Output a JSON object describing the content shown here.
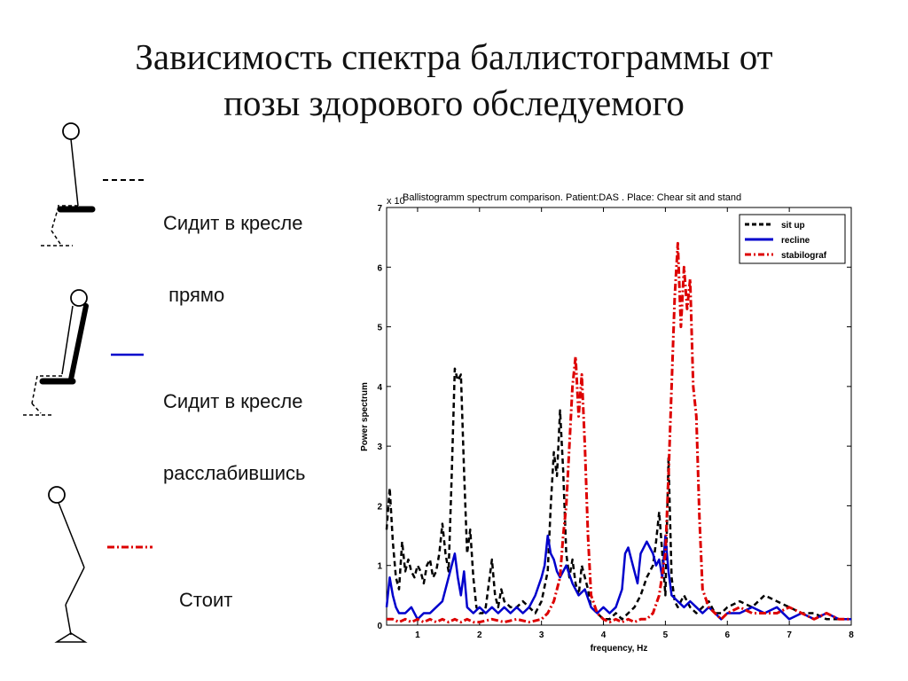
{
  "slide": {
    "title_line1": "Зависимость спектра баллистограммы от",
    "title_line2": "позы здорового обследуемого"
  },
  "pose_legend": [
    {
      "label_line1": "Сидит в кресле",
      "label_line2": " прямо",
      "style": "dashed",
      "color": "#000000"
    },
    {
      "label_line1": "Сидит в кресле",
      "label_line2": "расслабившись",
      "style": "solid",
      "color": "#0000cc"
    },
    {
      "label_line1": "Стоит",
      "label_line2": "",
      "style": "dashdot",
      "color": "#dd0000"
    }
  ],
  "chart_data": {
    "type": "line",
    "title": "Ballistogramm spectrum comparison. Patient:DAS . Place: Chear sit and stand",
    "exponent_label": "x 10",
    "xlabel": "frequency, Hz",
    "ylabel": "Power spectrum",
    "xlim": [
      0.5,
      8
    ],
    "ylim": [
      0,
      7
    ],
    "xticks": [
      "1",
      "2",
      "3",
      "4",
      "5",
      "6",
      "7",
      "8"
    ],
    "yticks": [
      "0",
      "1",
      "2",
      "3",
      "4",
      "5",
      "6",
      "7"
    ],
    "grid": false,
    "legend_position": "top-right",
    "series": [
      {
        "name": "sit up",
        "color": "#000000",
        "style": "dashed",
        "x": [
          0.5,
          0.55,
          0.6,
          0.65,
          0.7,
          0.75,
          0.8,
          0.85,
          0.9,
          0.95,
          1.0,
          1.05,
          1.1,
          1.15,
          1.2,
          1.25,
          1.3,
          1.35,
          1.4,
          1.45,
          1.5,
          1.55,
          1.6,
          1.65,
          1.7,
          1.75,
          1.8,
          1.85,
          1.9,
          1.95,
          2.0,
          2.05,
          2.1,
          2.15,
          2.2,
          2.25,
          2.3,
          2.35,
          2.4,
          2.5,
          2.6,
          2.7,
          2.8,
          2.9,
          3.0,
          3.1,
          3.15,
          3.2,
          3.25,
          3.3,
          3.35,
          3.4,
          3.45,
          3.5,
          3.55,
          3.6,
          3.65,
          3.7,
          3.75,
          3.8,
          3.9,
          4.0,
          4.1,
          4.2,
          4.3,
          4.4,
          4.5,
          4.6,
          4.7,
          4.8,
          4.85,
          4.9,
          4.95,
          5.0,
          5.05,
          5.1,
          5.15,
          5.2,
          5.3,
          5.4,
          5.5,
          5.6,
          5.7,
          5.8,
          5.9,
          6.0,
          6.2,
          6.4,
          6.6,
          6.8,
          7.0,
          7.2,
          7.4,
          7.6,
          7.8,
          8.0
        ],
        "y": [
          1.6,
          2.3,
          1.4,
          0.8,
          0.6,
          1.4,
          0.9,
          1.1,
          0.9,
          0.8,
          1.0,
          0.9,
          0.7,
          1.0,
          1.1,
          0.8,
          0.9,
          1.2,
          1.7,
          1.2,
          0.9,
          2.5,
          4.3,
          4.1,
          4.2,
          2.6,
          1.2,
          1.6,
          0.8,
          0.3,
          0.2,
          0.2,
          0.3,
          0.7,
          1.1,
          0.5,
          0.3,
          0.6,
          0.4,
          0.3,
          0.3,
          0.4,
          0.3,
          0.2,
          0.4,
          0.9,
          2.0,
          2.9,
          2.5,
          3.6,
          2.6,
          1.2,
          0.8,
          1.1,
          0.7,
          0.5,
          1.0,
          0.8,
          0.6,
          0.3,
          0.2,
          0.1,
          0.1,
          0.2,
          0.1,
          0.2,
          0.3,
          0.5,
          0.8,
          1.0,
          1.4,
          1.9,
          1.2,
          0.5,
          2.8,
          0.8,
          0.4,
          0.3,
          0.5,
          0.3,
          0.2,
          0.3,
          0.4,
          0.2,
          0.2,
          0.3,
          0.4,
          0.3,
          0.5,
          0.4,
          0.3,
          0.2,
          0.2,
          0.1,
          0.1,
          0.1
        ]
      },
      {
        "name": "recline",
        "color": "#0000cc",
        "style": "solid",
        "x": [
          0.5,
          0.55,
          0.6,
          0.65,
          0.7,
          0.8,
          0.9,
          1.0,
          1.1,
          1.2,
          1.3,
          1.4,
          1.5,
          1.55,
          1.6,
          1.65,
          1.7,
          1.75,
          1.8,
          1.9,
          2.0,
          2.1,
          2.2,
          2.3,
          2.4,
          2.5,
          2.6,
          2.7,
          2.8,
          2.9,
          3.0,
          3.05,
          3.1,
          3.15,
          3.2,
          3.25,
          3.3,
          3.4,
          3.5,
          3.6,
          3.7,
          3.8,
          3.9,
          4.0,
          4.1,
          4.2,
          4.3,
          4.35,
          4.4,
          4.45,
          4.5,
          4.55,
          4.6,
          4.7,
          4.75,
          4.8,
          4.85,
          4.9,
          4.95,
          5.0,
          5.05,
          5.1,
          5.2,
          5.3,
          5.4,
          5.5,
          5.6,
          5.7,
          5.8,
          5.9,
          6.0,
          6.2,
          6.4,
          6.6,
          6.8,
          7.0,
          7.2,
          7.4,
          7.6,
          7.8,
          8.0
        ],
        "y": [
          0.3,
          0.8,
          0.5,
          0.3,
          0.2,
          0.2,
          0.3,
          0.1,
          0.2,
          0.2,
          0.3,
          0.4,
          0.8,
          1.0,
          1.2,
          0.8,
          0.5,
          0.9,
          0.3,
          0.2,
          0.3,
          0.2,
          0.3,
          0.2,
          0.3,
          0.2,
          0.3,
          0.2,
          0.3,
          0.5,
          0.8,
          1.0,
          1.5,
          1.2,
          1.1,
          0.9,
          0.8,
          1.0,
          0.7,
          0.5,
          0.6,
          0.3,
          0.2,
          0.3,
          0.2,
          0.3,
          0.6,
          1.2,
          1.3,
          1.1,
          0.9,
          0.7,
          1.2,
          1.4,
          1.3,
          1.2,
          1.0,
          1.1,
          0.8,
          1.5,
          0.9,
          0.5,
          0.4,
          0.3,
          0.4,
          0.3,
          0.2,
          0.3,
          0.2,
          0.1,
          0.2,
          0.2,
          0.3,
          0.2,
          0.3,
          0.1,
          0.2,
          0.1,
          0.2,
          0.1,
          0.1
        ]
      },
      {
        "name": "stabilograf",
        "color": "#dd0000",
        "style": "dashdot",
        "x": [
          0.5,
          0.6,
          0.7,
          0.8,
          0.9,
          1.0,
          1.1,
          1.2,
          1.3,
          1.4,
          1.5,
          1.6,
          1.7,
          1.8,
          1.9,
          2.0,
          2.2,
          2.4,
          2.6,
          2.8,
          3.0,
          3.1,
          3.2,
          3.3,
          3.35,
          3.4,
          3.45,
          3.5,
          3.55,
          3.6,
          3.65,
          3.7,
          3.75,
          3.8,
          3.9,
          4.0,
          4.1,
          4.2,
          4.3,
          4.4,
          4.5,
          4.6,
          4.7,
          4.8,
          4.9,
          5.0,
          5.05,
          5.1,
          5.15,
          5.2,
          5.25,
          5.3,
          5.35,
          5.4,
          5.45,
          5.5,
          5.55,
          5.6,
          5.7,
          5.8,
          5.9,
          6.0,
          6.2,
          6.4,
          6.6,
          6.8,
          7.0,
          7.2,
          7.4,
          7.6,
          7.8,
          8.0
        ],
        "y": [
          0.1,
          0.1,
          0.05,
          0.1,
          0.05,
          0.1,
          0.05,
          0.1,
          0.05,
          0.1,
          0.05,
          0.1,
          0.05,
          0.1,
          0.05,
          0.05,
          0.1,
          0.05,
          0.1,
          0.05,
          0.1,
          0.2,
          0.4,
          0.8,
          1.5,
          2.0,
          3.0,
          4.0,
          4.5,
          3.5,
          4.2,
          3.0,
          1.5,
          0.5,
          0.2,
          0.1,
          0.05,
          0.1,
          0.05,
          0.1,
          0.05,
          0.1,
          0.1,
          0.2,
          0.5,
          1.2,
          2.5,
          4.0,
          5.5,
          6.4,
          5.0,
          6.0,
          5.3,
          5.8,
          4.0,
          3.5,
          1.8,
          0.6,
          0.3,
          0.2,
          0.1,
          0.2,
          0.3,
          0.2,
          0.2,
          0.2,
          0.3,
          0.2,
          0.1,
          0.2,
          0.1,
          0.1
        ]
      }
    ]
  }
}
